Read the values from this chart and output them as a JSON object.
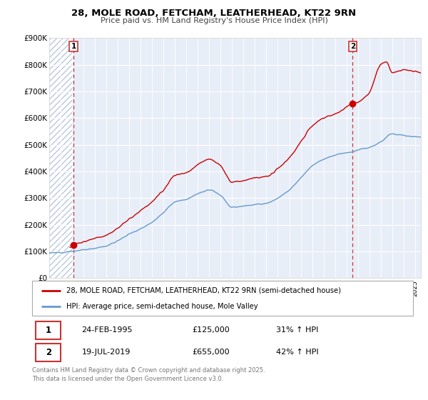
{
  "title1": "28, MOLE ROAD, FETCHAM, LEATHERHEAD, KT22 9RN",
  "title2": "Price paid vs. HM Land Registry's House Price Index (HPI)",
  "legend_line1": "28, MOLE ROAD, FETCHAM, LEATHERHEAD, KT22 9RN (semi-detached house)",
  "legend_line2": "HPI: Average price, semi-detached house, Mole Valley",
  "sale1_date": "24-FEB-1995",
  "sale1_price": "£125,000",
  "sale1_hpi": "31% ↑ HPI",
  "sale2_date": "19-JUL-2019",
  "sale2_price": "£655,000",
  "sale2_hpi": "42% ↑ HPI",
  "footer": "Contains HM Land Registry data © Crown copyright and database right 2025.\nThis data is licensed under the Open Government Licence v3.0.",
  "sale1_year": 1995.12,
  "sale2_year": 2019.54,
  "sale1_value": 125000,
  "sale2_value": 655000,
  "property_color": "#cc0000",
  "hpi_color": "#6699cc",
  "dashed_color": "#cc3333",
  "bg_color": "#e8eef8",
  "hatch_color": "#b8c8dc",
  "ylim": [
    0,
    900000
  ],
  "xlim_start": 1993.0,
  "xlim_end": 2025.5
}
